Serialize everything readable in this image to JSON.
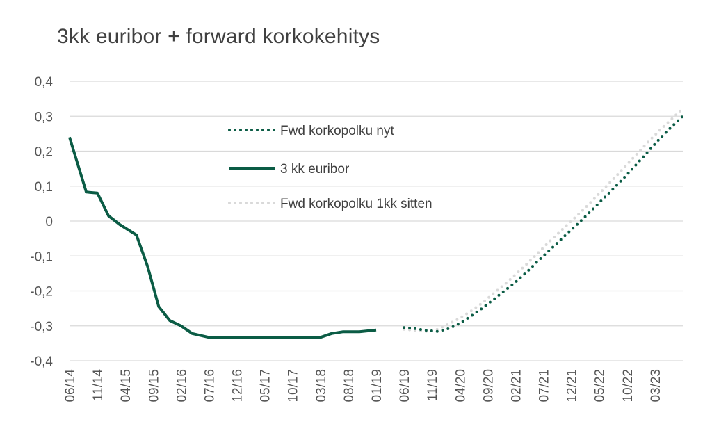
{
  "chart_data": {
    "type": "line",
    "title": "3kk euribor + forward korkokehitys",
    "xlabel": "",
    "ylabel": "",
    "ylim": [
      -0.4,
      0.4
    ],
    "y_ticks": [
      "0,4",
      "0,3",
      "0,2",
      "0,1",
      "0",
      "-0,1",
      "-0,2",
      "-0,3",
      "-0,4"
    ],
    "x_ticks": [
      "06/14",
      "11/14",
      "04/15",
      "09/15",
      "02/16",
      "07/16",
      "12/16",
      "05/17",
      "10/17",
      "03/18",
      "08/18",
      "01/19",
      "06/19",
      "11/19",
      "04/20",
      "09/20",
      "02/21",
      "07/21",
      "12/21",
      "05/22",
      "10/22",
      "03/23"
    ],
    "grid": true,
    "legend_position": "top-center",
    "series": [
      {
        "name": "Fwd korkopolku nyt",
        "style": "dotted",
        "color": "#0b5c45",
        "points": [
          [
            "06/19",
            -0.305
          ],
          [
            "08/19",
            -0.308
          ],
          [
            "10/19",
            -0.313
          ],
          [
            "12/19",
            -0.316
          ],
          [
            "02/20",
            -0.308
          ],
          [
            "04/20",
            -0.293
          ],
          [
            "06/20",
            -0.272
          ],
          [
            "08/20",
            -0.25
          ],
          [
            "10/20",
            -0.225
          ],
          [
            "12/20",
            -0.2
          ],
          [
            "02/21",
            -0.175
          ],
          [
            "04/21",
            -0.146
          ],
          [
            "06/21",
            -0.115
          ],
          [
            "08/21",
            -0.085
          ],
          [
            "10/21",
            -0.055
          ],
          [
            "12/21",
            -0.025
          ],
          [
            "02/22",
            0.005
          ],
          [
            "04/22",
            0.036
          ],
          [
            "06/22",
            0.068
          ],
          [
            "08/22",
            0.1
          ],
          [
            "10/22",
            0.133
          ],
          [
            "12/22",
            0.168
          ],
          [
            "02/23",
            0.203
          ],
          [
            "04/23",
            0.238
          ],
          [
            "06/23",
            0.27
          ],
          [
            "08/23",
            0.3
          ]
        ]
      },
      {
        "name": "3 kk euribor",
        "style": "solid",
        "color": "#0b5c45",
        "points": [
          [
            "06/14",
            0.24
          ],
          [
            "09/14",
            0.083
          ],
          [
            "11/14",
            0.08
          ],
          [
            "01/15",
            0.015
          ],
          [
            "03/15",
            -0.01
          ],
          [
            "06/15",
            -0.04
          ],
          [
            "08/15",
            -0.13
          ],
          [
            "10/15",
            -0.245
          ],
          [
            "12/15",
            -0.285
          ],
          [
            "02/16",
            -0.3
          ],
          [
            "04/16",
            -0.322
          ],
          [
            "07/16",
            -0.333
          ],
          [
            "01/17",
            -0.333
          ],
          [
            "07/17",
            -0.333
          ],
          [
            "01/18",
            -0.333
          ],
          [
            "03/18",
            -0.333
          ],
          [
            "05/18",
            -0.322
          ],
          [
            "07/18",
            -0.317
          ],
          [
            "10/18",
            -0.317
          ],
          [
            "01/19",
            -0.312
          ]
        ]
      },
      {
        "name": "Fwd korkopolku 1kk sitten",
        "style": "dotted",
        "color": "#d9d9d9",
        "points": [
          [
            "06/19",
            -0.31
          ],
          [
            "08/19",
            -0.313
          ],
          [
            "10/19",
            -0.316
          ],
          [
            "12/19",
            -0.31
          ],
          [
            "02/20",
            -0.295
          ],
          [
            "04/20",
            -0.278
          ],
          [
            "06/20",
            -0.258
          ],
          [
            "08/20",
            -0.235
          ],
          [
            "10/20",
            -0.208
          ],
          [
            "12/20",
            -0.182
          ],
          [
            "02/21",
            -0.153
          ],
          [
            "04/21",
            -0.123
          ],
          [
            "06/21",
            -0.092
          ],
          [
            "08/21",
            -0.06
          ],
          [
            "10/21",
            -0.03
          ],
          [
            "12/21",
            0.0
          ],
          [
            "02/22",
            0.03
          ],
          [
            "04/22",
            0.062
          ],
          [
            "06/22",
            0.095
          ],
          [
            "08/22",
            0.128
          ],
          [
            "10/22",
            0.162
          ],
          [
            "12/22",
            0.196
          ],
          [
            "02/23",
            0.23
          ],
          [
            "04/23",
            0.262
          ],
          [
            "06/23",
            0.292
          ],
          [
            "08/23",
            0.322
          ]
        ]
      }
    ]
  }
}
